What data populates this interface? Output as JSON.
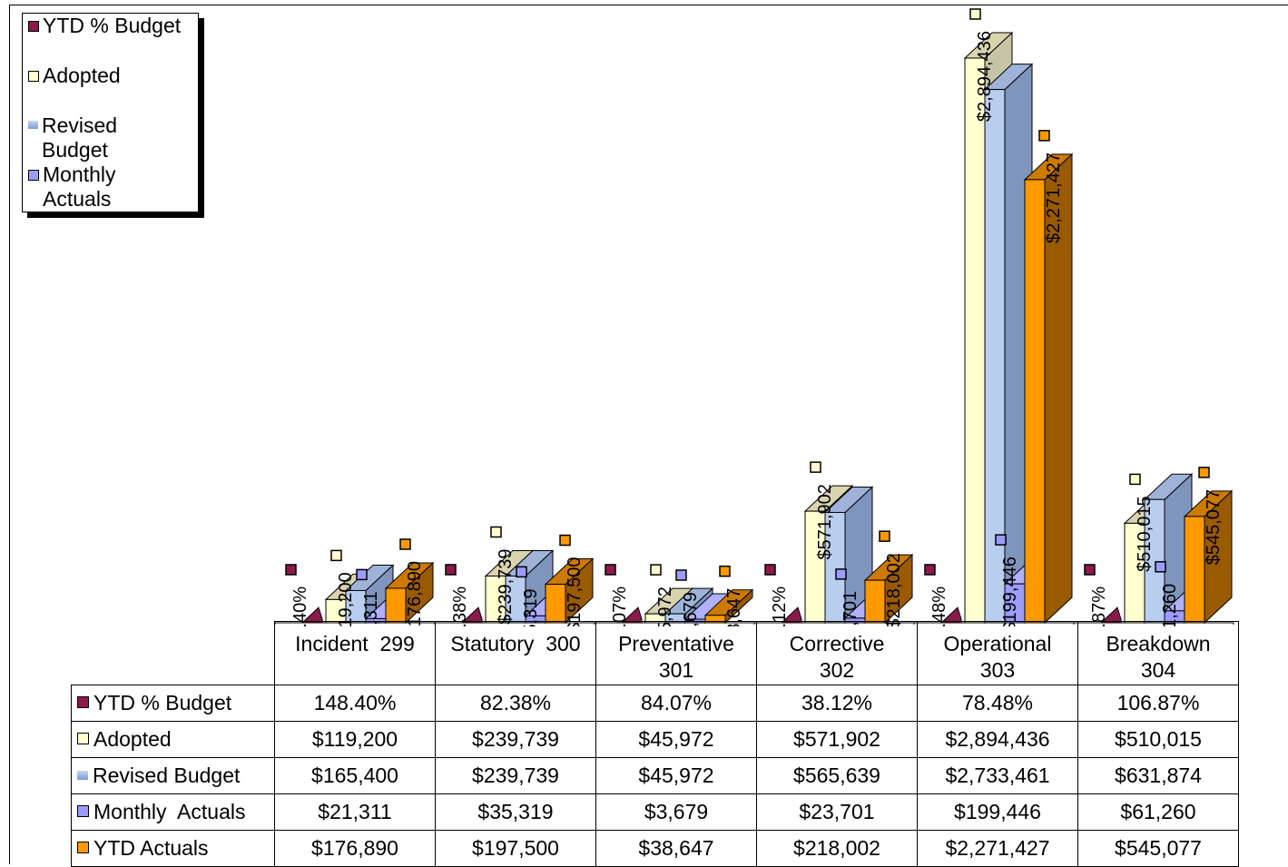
{
  "legend": {
    "items": [
      {
        "label": "YTD % Budget",
        "color": "#8b1a4a"
      },
      {
        "label": "Adopted",
        "color": "#ffffd0"
      },
      {
        "label": "Revised\nBudget",
        "color": "#9fb8e6"
      },
      {
        "label": "Monthly\nActuals",
        "color": "#9c9cff"
      }
    ]
  },
  "chart_data": {
    "type": "bar",
    "title": "",
    "categories": [
      "Incident  299",
      "Statutory  300",
      "Preventative 301",
      "Corrective 302",
      "Operational 303",
      "Breakdown 304"
    ],
    "series": [
      {
        "name": "YTD % Budget",
        "color": "#8b1a4a",
        "values": [
          1.484,
          0.8238,
          0.8407,
          0.3812,
          0.7848,
          1.0687
        ],
        "labels": [
          "148.40%",
          "82.38%",
          "84.07%",
          "38.12%",
          "78.48%",
          "106.87%"
        ]
      },
      {
        "name": "Adopted",
        "color": "#ffffd0",
        "values": [
          119200,
          239739,
          45972,
          571902,
          2894436,
          510015
        ],
        "labels": [
          "$119,200",
          "$239,739",
          "$45,972",
          "$571,902",
          "$2,894,436",
          "$510,015"
        ]
      },
      {
        "name": "Revised Budget",
        "color": "#9fb8e6",
        "values": [
          165400,
          239739,
          45972,
          565639,
          2733461,
          631874
        ],
        "labels": [
          "$165,400",
          "$239,739",
          "$45,972",
          "$565,639",
          "$2,733,461",
          "$631,874"
        ]
      },
      {
        "name": "Monthly  Actuals",
        "color": "#9c9cff",
        "values": [
          21311,
          35319,
          3679,
          23701,
          199446,
          61260
        ],
        "labels": [
          "$21,311",
          "$35,319",
          "$3,679",
          "$23,701",
          "$199,446",
          "$61,260"
        ]
      },
      {
        "name": "YTD Actuals",
        "color": "#ff9900",
        "values": [
          176890,
          197500,
          38647,
          218002,
          2271427,
          545077
        ],
        "labels": [
          "$176,890",
          "$197,500",
          "$38,647",
          "$218,002",
          "$2,271,427",
          "$545,077"
        ]
      }
    ],
    "ylim": [
      0,
      2894436
    ],
    "legend_position": "top-left",
    "grid": false
  },
  "table": {
    "categories": [
      "Incident  299",
      "Statutory  300",
      "Preventative\n301",
      "Corrective\n302",
      "Operational\n303",
      "Breakdown\n304"
    ],
    "rows": [
      {
        "label": "YTD % Budget",
        "color": "#8b1a4a",
        "cells": [
          "148.40%",
          "82.38%",
          "84.07%",
          "38.12%",
          "78.48%",
          "106.87%"
        ]
      },
      {
        "label": "Adopted",
        "color": "#ffffd0",
        "cells": [
          "$119,200",
          "$239,739",
          "$45,972",
          "$571,902",
          "$2,894,436",
          "$510,015"
        ]
      },
      {
        "label": "Revised Budget",
        "color": "#9fb8e6",
        "cells": [
          "$165,400",
          "$239,739",
          "$45,972",
          "$565,639",
          "$2,733,461",
          "$631,874"
        ]
      },
      {
        "label": "Monthly  Actuals",
        "color": "#9c9cff",
        "cells": [
          "$21,311",
          "$35,319",
          "$3,679",
          "$23,701",
          "$199,446",
          "$61,260"
        ]
      },
      {
        "label": "YTD Actuals",
        "color": "#ff9900",
        "cells": [
          "$176,890",
          "$197,500",
          "$38,647",
          "$218,002",
          "$2,271,427",
          "$545,077"
        ]
      }
    ]
  }
}
